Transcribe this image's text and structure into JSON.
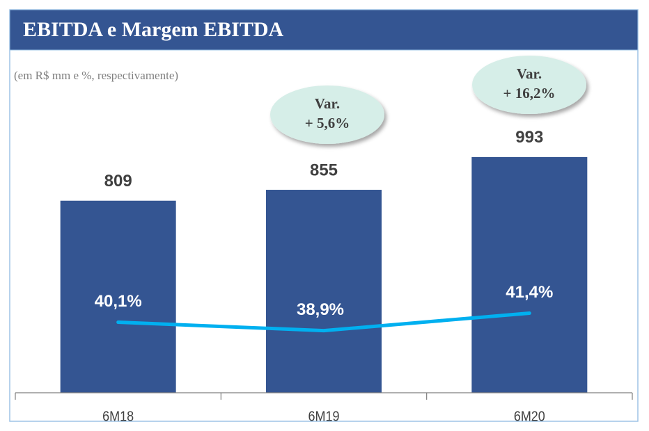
{
  "chart_data": {
    "type": "bar",
    "title": "EBITDA e Margem EBITDA",
    "subtitle": "(em R$ mm e %, respectivamente)",
    "categories": [
      "6M18",
      "6M19",
      "6M20"
    ],
    "series": [
      {
        "type": "bar",
        "color": "#345592",
        "values": [
          809,
          855,
          993
        ]
      },
      {
        "type": "line",
        "axis": "y2",
        "color": "#00b0f0",
        "values": [
          40.1,
          38.9,
          41.4
        ],
        "value_labels": [
          "40,1%",
          "38,9%",
          "41,4%"
        ]
      }
    ],
    "ylim": [
      0,
      1000
    ],
    "y2lim": [
      30,
      64
    ],
    "annotations": [
      [
        "Var.",
        "+ 5,6%"
      ],
      [
        "Var.",
        "+ 16,2%"
      ]
    ]
  }
}
